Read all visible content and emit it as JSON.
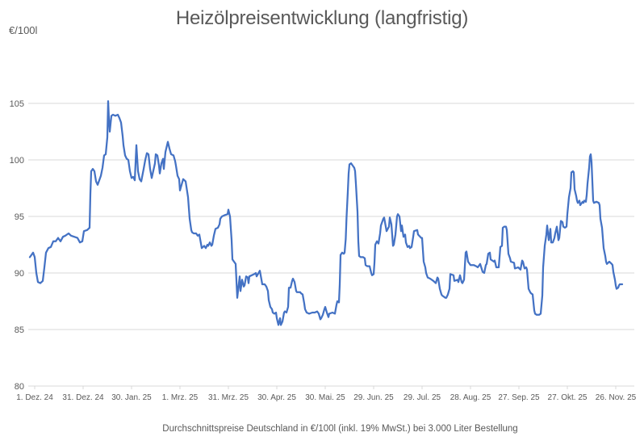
{
  "chart": {
    "title": "Heizölpreisentwicklung (langfristig)",
    "unit_label": "€/100l",
    "footnote": "Durchschnittspreise Deutschland in €/100l (inkl. 19% MwSt.) bei 3.000 Liter Bestellung"
  },
  "colors": {
    "line": "#4472C4",
    "grid": "#D9D9D9",
    "text": "#595959",
    "background": "#FFFFFF"
  },
  "chart_data": {
    "type": "line",
    "title": "Heizölpreisentwicklung (langfristig)",
    "xlabel": "",
    "ylabel": "€/100l",
    "x_unit": "days since 1. Dez. 24",
    "ylim": [
      80,
      105
    ],
    "grid": true,
    "legend": false,
    "y_ticks": [
      80,
      85,
      90,
      95,
      100,
      105
    ],
    "x_ticks": [
      {
        "day": 0,
        "label": "1. Dez. 24"
      },
      {
        "day": 30,
        "label": "31. Dez. 24"
      },
      {
        "day": 60,
        "label": "30. Jan. 25"
      },
      {
        "day": 90,
        "label": "1. Mrz. 25"
      },
      {
        "day": 120,
        "label": "31. Mrz. 25"
      },
      {
        "day": 150,
        "label": "30. Apr. 25"
      },
      {
        "day": 180,
        "label": "30. Mai. 25"
      },
      {
        "day": 210,
        "label": "29. Jun. 25"
      },
      {
        "day": 240,
        "label": "29. Jul. 25"
      },
      {
        "day": 270,
        "label": "28. Aug. 25"
      },
      {
        "day": 300,
        "label": "27. Sep. 25"
      },
      {
        "day": 330,
        "label": "27. Okt. 25"
      },
      {
        "day": 360,
        "label": "26. Nov. 25"
      }
    ],
    "points": [
      [
        -3,
        91.4
      ],
      [
        -2,
        91.6
      ],
      [
        -1,
        91.8
      ],
      [
        0,
        91.4
      ],
      [
        1,
        90.0
      ],
      [
        2,
        89.2
      ],
      [
        3.5,
        89.1
      ],
      [
        5,
        89.3
      ],
      [
        6,
        90.5
      ],
      [
        7,
        91.8
      ],
      [
        8.5,
        92.2
      ],
      [
        10,
        92.3
      ],
      [
        11.5,
        92.8
      ],
      [
        13,
        92.8
      ],
      [
        14.5,
        93.1
      ],
      [
        16,
        92.8
      ],
      [
        17.5,
        93.2
      ],
      [
        19,
        93.3
      ],
      [
        21,
        93.5
      ],
      [
        22.5,
        93.3
      ],
      [
        24.5,
        93.2
      ],
      [
        26.5,
        93.1
      ],
      [
        28,
        92.7
      ],
      [
        29.5,
        92.8
      ],
      [
        30.5,
        93.7
      ],
      [
        32.5,
        93.8
      ],
      [
        34,
        94.0
      ],
      [
        34.5,
        97.0
      ],
      [
        35,
        99.0
      ],
      [
        36,
        99.2
      ],
      [
        37,
        99.0
      ],
      [
        38,
        98.1
      ],
      [
        39,
        97.8
      ],
      [
        40,
        98.2
      ],
      [
        41,
        98.6
      ],
      [
        42,
        99.3
      ],
      [
        43,
        100.4
      ],
      [
        44,
        100.5
      ],
      [
        45,
        102.0
      ],
      [
        45.5,
        105.2
      ],
      [
        46,
        103.6
      ],
      [
        46.5,
        102.5
      ],
      [
        47.5,
        103.9
      ],
      [
        48.5,
        104.0
      ],
      [
        50,
        103.9
      ],
      [
        51.5,
        104.0
      ],
      [
        52.5,
        103.7
      ],
      [
        53.5,
        103.3
      ],
      [
        54.5,
        102.1
      ],
      [
        55,
        101.3
      ],
      [
        56,
        100.4
      ],
      [
        57,
        100.1
      ],
      [
        58,
        100.0
      ],
      [
        59,
        99.0
      ],
      [
        60,
        98.4
      ],
      [
        61,
        98.5
      ],
      [
        62,
        98.2
      ],
      [
        63,
        101.3
      ],
      [
        64,
        99.0
      ],
      [
        65,
        98.3
      ],
      [
        66,
        98.1
      ],
      [
        67.5,
        99.2
      ],
      [
        68.5,
        100.0
      ],
      [
        69.5,
        100.6
      ],
      [
        70.5,
        100.5
      ],
      [
        71.5,
        99.2
      ],
      [
        72.5,
        98.4
      ],
      [
        74.5,
        99.7
      ],
      [
        75,
        100.5
      ],
      [
        76,
        100.4
      ],
      [
        77,
        99.5
      ],
      [
        77.5,
        98.8
      ],
      [
        78.5,
        99.7
      ],
      [
        79.5,
        100.1
      ],
      [
        80,
        99.2
      ],
      [
        81,
        100.7
      ],
      [
        82,
        101.3
      ],
      [
        82.5,
        101.6
      ],
      [
        83.5,
        101.0
      ],
      [
        84.5,
        100.5
      ],
      [
        86,
        100.4
      ],
      [
        87,
        99.9
      ],
      [
        87.5,
        99.5
      ],
      [
        88.5,
        98.6
      ],
      [
        89.5,
        98.3
      ],
      [
        90,
        97.3
      ],
      [
        91,
        97.8
      ],
      [
        92,
        98.3
      ],
      [
        93.5,
        98.1
      ],
      [
        95,
        96.7
      ],
      [
        96,
        94.8
      ],
      [
        97,
        93.8
      ],
      [
        97.5,
        93.6
      ],
      [
        98.5,
        93.5
      ],
      [
        100,
        93.5
      ],
      [
        101,
        93.3
      ],
      [
        102,
        93.4
      ],
      [
        103.5,
        92.2
      ],
      [
        105,
        92.4
      ],
      [
        106,
        92.2
      ],
      [
        107,
        92.5
      ],
      [
        107.5,
        92.4
      ],
      [
        108.5,
        92.7
      ],
      [
        109.5,
        92.4
      ],
      [
        110,
        92.5
      ],
      [
        111,
        93.3
      ],
      [
        112,
        93.9
      ],
      [
        113.5,
        94.0
      ],
      [
        114.5,
        94.3
      ],
      [
        115,
        94.8
      ],
      [
        116,
        95.0
      ],
      [
        117.5,
        95.1
      ],
      [
        119.5,
        95.2
      ],
      [
        120,
        95.6
      ],
      [
        121,
        95.0
      ],
      [
        122,
        92.9
      ],
      [
        122.5,
        91.2
      ],
      [
        123.5,
        91.0
      ],
      [
        124.5,
        90.8
      ],
      [
        125.5,
        87.8
      ],
      [
        127,
        89.7
      ],
      [
        127.5,
        88.4
      ],
      [
        128.5,
        89.4
      ],
      [
        129.5,
        88.8
      ],
      [
        130,
        88.9
      ],
      [
        131,
        89.7
      ],
      [
        132,
        89.6
      ],
      [
        132.5,
        89.1
      ],
      [
        133,
        89.7
      ],
      [
        134.5,
        89.8
      ],
      [
        136,
        89.9
      ],
      [
        137,
        90.0
      ],
      [
        137.5,
        89.7
      ],
      [
        139.5,
        90.2
      ],
      [
        140,
        89.8
      ],
      [
        141,
        89.0
      ],
      [
        142.5,
        89.0
      ],
      [
        143.5,
        88.8
      ],
      [
        144.5,
        88.4
      ],
      [
        145,
        87.6
      ],
      [
        146,
        87.0
      ],
      [
        147,
        86.8
      ],
      [
        147.5,
        86.5
      ],
      [
        148.5,
        86.4
      ],
      [
        149.5,
        86.5
      ],
      [
        150,
        86.0
      ],
      [
        151,
        85.4
      ],
      [
        152,
        86.0
      ],
      [
        152.5,
        85.4
      ],
      [
        153.5,
        85.7
      ],
      [
        154.5,
        86.5
      ],
      [
        155,
        86.6
      ],
      [
        156,
        86.5
      ],
      [
        157,
        87.0
      ],
      [
        157.5,
        88.7
      ],
      [
        158.5,
        88.7
      ],
      [
        159.5,
        89.3
      ],
      [
        160,
        89.5
      ],
      [
        161,
        89.2
      ],
      [
        162,
        88.4
      ],
      [
        162.5,
        88.3
      ],
      [
        164.5,
        88.3
      ],
      [
        165,
        88.2
      ],
      [
        166,
        88.1
      ],
      [
        167,
        87.3
      ],
      [
        167.5,
        86.8
      ],
      [
        168.5,
        86.5
      ],
      [
        170,
        86.4
      ],
      [
        172,
        86.5
      ],
      [
        173.5,
        86.5
      ],
      [
        175,
        86.6
      ],
      [
        176,
        86.4
      ],
      [
        177,
        85.9
      ],
      [
        177.5,
        86.0
      ],
      [
        178.5,
        86.3
      ],
      [
        179.5,
        86.8
      ],
      [
        180,
        87.0
      ],
      [
        181,
        86.5
      ],
      [
        182,
        86.1
      ],
      [
        182.5,
        86.4
      ],
      [
        184.5,
        86.5
      ],
      [
        186,
        86.4
      ],
      [
        187,
        87.2
      ],
      [
        187.5,
        87.5
      ],
      [
        188.5,
        87.4
      ],
      [
        189,
        89.0
      ],
      [
        189.5,
        91.6
      ],
      [
        190.5,
        91.8
      ],
      [
        191.5,
        91.7
      ],
      [
        192,
        91.8
      ],
      [
        192.7,
        93.0
      ],
      [
        193.2,
        94.9
      ],
      [
        194,
        97.2
      ],
      [
        194.5,
        98.8
      ],
      [
        195,
        99.6
      ],
      [
        196,
        99.7
      ],
      [
        197,
        99.5
      ],
      [
        198,
        99.3
      ],
      [
        198.5,
        99.0
      ],
      [
        199,
        97.9
      ],
      [
        200,
        95.4
      ],
      [
        200.5,
        92.8
      ],
      [
        201,
        91.5
      ],
      [
        202,
        91.4
      ],
      [
        203.5,
        91.4
      ],
      [
        204.5,
        91.3
      ],
      [
        205,
        90.7
      ],
      [
        206,
        90.6
      ],
      [
        207.5,
        90.6
      ],
      [
        208.5,
        90.0
      ],
      [
        209,
        89.8
      ],
      [
        210,
        89.9
      ],
      [
        210.5,
        90.9
      ],
      [
        211,
        92.5
      ],
      [
        212,
        92.8
      ],
      [
        213,
        92.6
      ],
      [
        214,
        93.5
      ],
      [
        214.5,
        94.2
      ],
      [
        216,
        94.8
      ],
      [
        216.5,
        94.9
      ],
      [
        218,
        93.7
      ],
      [
        219.5,
        94.1
      ],
      [
        220,
        94.9
      ],
      [
        221,
        94.3
      ],
      [
        222,
        92.4
      ],
      [
        222.5,
        92.5
      ],
      [
        223.5,
        93.4
      ],
      [
        224.5,
        95.0
      ],
      [
        225,
        95.2
      ],
      [
        226,
        95.0
      ],
      [
        227,
        93.7
      ],
      [
        227.5,
        94.2
      ],
      [
        228.5,
        93.2
      ],
      [
        229.5,
        93.4
      ],
      [
        230,
        92.7
      ],
      [
        231,
        92.3
      ],
      [
        232,
        92.4
      ],
      [
        232.5,
        92.2
      ],
      [
        233.5,
        92.3
      ],
      [
        234.5,
        93.2
      ],
      [
        235,
        93.7
      ],
      [
        237,
        93.8
      ],
      [
        237.5,
        93.4
      ],
      [
        239.5,
        93.1
      ],
      [
        240,
        93.1
      ],
      [
        241,
        91.0
      ],
      [
        242,
        90.5
      ],
      [
        242.5,
        90.0
      ],
      [
        243.5,
        89.6
      ],
      [
        245,
        89.5
      ],
      [
        247,
        89.3
      ],
      [
        248.5,
        89.1
      ],
      [
        249.5,
        89.6
      ],
      [
        250,
        89.5
      ],
      [
        251,
        88.6
      ],
      [
        252,
        88.1
      ],
      [
        252.5,
        88.0
      ],
      [
        254.5,
        87.8
      ],
      [
        255,
        87.8
      ],
      [
        256,
        88.1
      ],
      [
        257,
        88.6
      ],
      [
        257.5,
        89.9
      ],
      [
        259.5,
        89.8
      ],
      [
        260,
        89.3
      ],
      [
        262,
        89.4
      ],
      [
        262.5,
        89.2
      ],
      [
        263.5,
        89.8
      ],
      [
        264.5,
        89.2
      ],
      [
        265,
        89.1
      ],
      [
        266,
        89.4
      ],
      [
        267,
        91.8
      ],
      [
        267.5,
        91.9
      ],
      [
        268.5,
        91.0
      ],
      [
        270,
        90.7
      ],
      [
        272,
        90.7
      ],
      [
        273.5,
        90.6
      ],
      [
        274.5,
        90.5
      ],
      [
        276,
        90.8
      ],
      [
        277.5,
        90.1
      ],
      [
        278.5,
        90.0
      ],
      [
        279.5,
        90.7
      ],
      [
        280,
        90.8
      ],
      [
        281,
        91.7
      ],
      [
        282,
        91.8
      ],
      [
        282.5,
        91.2
      ],
      [
        284.5,
        91.0
      ],
      [
        285,
        91.1
      ],
      [
        286,
        90.5
      ],
      [
        287.5,
        90.5
      ],
      [
        288.5,
        92.3
      ],
      [
        289.5,
        92.4
      ],
      [
        290,
        94.0
      ],
      [
        291,
        94.1
      ],
      [
        292,
        94.1
      ],
      [
        292.5,
        93.8
      ],
      [
        293.5,
        91.7
      ],
      [
        294.5,
        91.3
      ],
      [
        295,
        91.0
      ],
      [
        297,
        90.9
      ],
      [
        297.5,
        90.4
      ],
      [
        299.5,
        90.5
      ],
      [
        301,
        90.3
      ],
      [
        302,
        91.1
      ],
      [
        302.5,
        91.0
      ],
      [
        303.5,
        90.4
      ],
      [
        304.5,
        90.5
      ],
      [
        305,
        90.3
      ],
      [
        306,
        88.6
      ],
      [
        307,
        88.3
      ],
      [
        307.5,
        88.2
      ],
      [
        308.5,
        88.1
      ],
      [
        309.5,
        86.7
      ],
      [
        310,
        86.4
      ],
      [
        311,
        86.3
      ],
      [
        312.5,
        86.3
      ],
      [
        313.5,
        86.4
      ],
      [
        314.5,
        88.0
      ],
      [
        315,
        90.5
      ],
      [
        316,
        92.4
      ],
      [
        317,
        93.4
      ],
      [
        317.5,
        94.2
      ],
      [
        318.5,
        92.9
      ],
      [
        319.5,
        93.9
      ],
      [
        320,
        92.7
      ],
      [
        321,
        92.7
      ],
      [
        322,
        93.1
      ],
      [
        322.5,
        93.5
      ],
      [
        323.5,
        94.1
      ],
      [
        324.5,
        92.9
      ],
      [
        325,
        93.1
      ],
      [
        326,
        94.6
      ],
      [
        327,
        94.5
      ],
      [
        327.5,
        94.1
      ],
      [
        328.5,
        94.0
      ],
      [
        329.5,
        94.1
      ],
      [
        330,
        95.2
      ],
      [
        331,
        96.7
      ],
      [
        332,
        97.5
      ],
      [
        332.5,
        98.9
      ],
      [
        333.5,
        99.0
      ],
      [
        334,
        98.9
      ],
      [
        334.5,
        97.4
      ],
      [
        335.5,
        96.8
      ],
      [
        336,
        96.4
      ],
      [
        336.5,
        96.2
      ],
      [
        337.5,
        96.4
      ],
      [
        338,
        96.0
      ],
      [
        338.5,
        96.1
      ],
      [
        339.5,
        96.3
      ],
      [
        340,
        96.2
      ],
      [
        340.5,
        96.4
      ],
      [
        341.5,
        96.3
      ],
      [
        342,
        96.9
      ],
      [
        342.5,
        97.9
      ],
      [
        343.5,
        99.3
      ],
      [
        344,
        100.3
      ],
      [
        344.5,
        100.5
      ],
      [
        345,
        99.8
      ],
      [
        345.5,
        98.1
      ],
      [
        346,
        96.4
      ],
      [
        346.5,
        96.2
      ],
      [
        348,
        96.3
      ],
      [
        349.5,
        96.2
      ],
      [
        350,
        96.0
      ],
      [
        350.5,
        94.8
      ],
      [
        351.5,
        94.0
      ],
      [
        352,
        93.1
      ],
      [
        352.5,
        92.2
      ],
      [
        353.5,
        91.5
      ],
      [
        354,
        91.0
      ],
      [
        354.5,
        90.8
      ],
      [
        356,
        91.0
      ],
      [
        357.5,
        90.8
      ],
      [
        358,
        90.7
      ],
      [
        358.5,
        90.1
      ],
      [
        359.5,
        89.4
      ],
      [
        360,
        88.9
      ],
      [
        360.5,
        88.6
      ],
      [
        361.5,
        88.7
      ],
      [
        362,
        88.9
      ],
      [
        362.5,
        89.0
      ],
      [
        364,
        89.0
      ]
    ]
  }
}
